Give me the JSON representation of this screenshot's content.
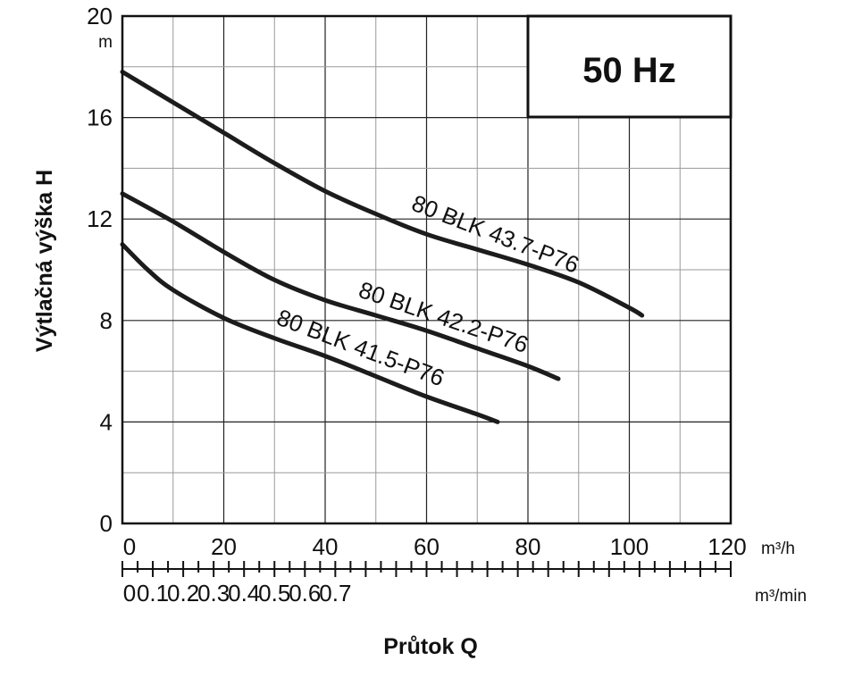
{
  "chart_data": {
    "type": "line",
    "frequency_label": "50 Hz",
    "xlabel": "Průtok Q",
    "ylabel": "Výtlačná výška H",
    "y_unit": "m",
    "x_unit": "m³/h",
    "x2_unit": "m³/min",
    "xlim": [
      0,
      120
    ],
    "ylim": [
      0,
      20
    ],
    "x_ticks": [
      "0",
      "20",
      "40",
      "60",
      "80",
      "100",
      "120"
    ],
    "x2_ticks": [
      "0",
      "0.1",
      "0.2",
      "0.3",
      "0.4",
      "0.5",
      "0.6",
      "0.7"
    ],
    "y_ticks": [
      "0",
      "4",
      "8",
      "12",
      "16",
      "20"
    ],
    "grid": true,
    "series": [
      {
        "name": "80 BLK 43.7-P76",
        "x": [
          0,
          10,
          20,
          30,
          40,
          50,
          60,
          70,
          80,
          90,
          100,
          102.5
        ],
        "y": [
          17.8,
          16.6,
          15.4,
          14.2,
          13.1,
          12.2,
          11.4,
          10.8,
          10.2,
          9.5,
          8.5,
          8.2
        ]
      },
      {
        "name": "80 BLK 42.2-P76",
        "x": [
          0,
          10,
          20,
          30,
          40,
          50,
          60,
          70,
          80,
          86
        ],
        "y": [
          13.0,
          11.9,
          10.7,
          9.6,
          8.8,
          8.2,
          7.6,
          6.9,
          6.2,
          5.7
        ]
      },
      {
        "name": "80 BLK 41.5-P76",
        "x": [
          0,
          5,
          10,
          20,
          30,
          40,
          50,
          60,
          70,
          74
        ],
        "y": [
          11.0,
          10.0,
          9.2,
          8.1,
          7.3,
          6.6,
          5.8,
          5.0,
          4.3,
          4.0
        ]
      }
    ]
  }
}
